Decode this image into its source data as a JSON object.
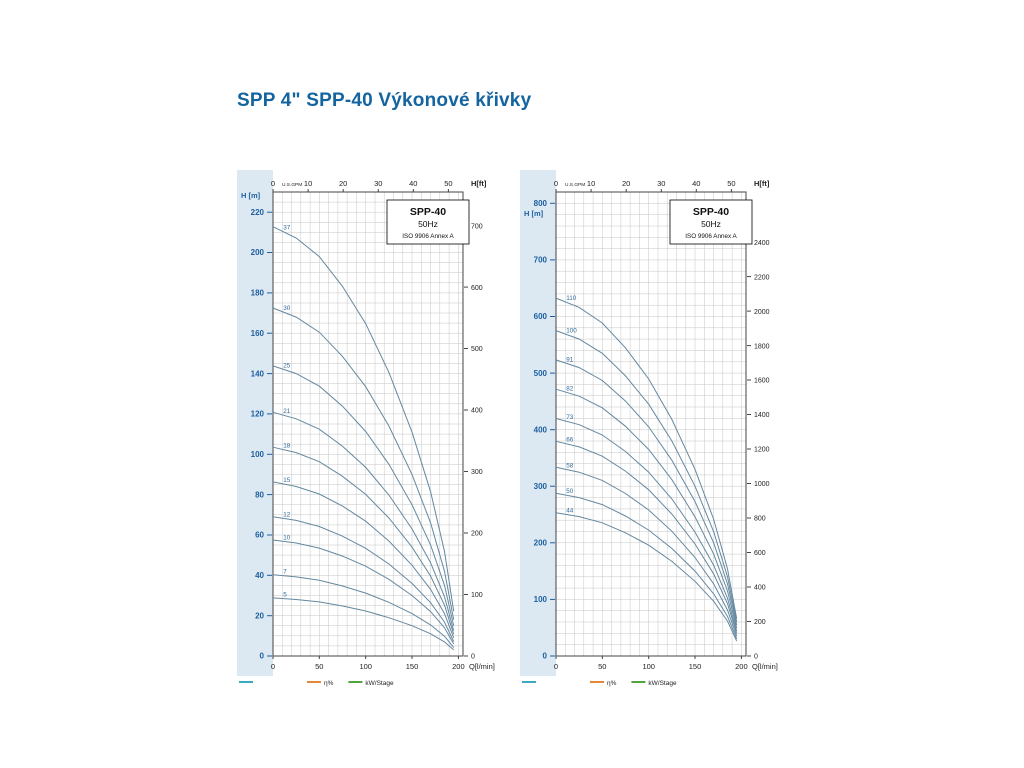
{
  "page": {
    "title": "SPP 4\" SPP-40 Výkonové křivky"
  },
  "colors": {
    "title": "#1464a0",
    "band": "#dde9f2",
    "grid": "#c6c6c6",
    "frame": "#444444",
    "curve": "#6488a0",
    "curve_label": "#2f6b9e",
    "axis_blue": "#1d5fa0",
    "axis_dark": "#222222",
    "legend_teal": "#25a0b4",
    "legend_orange": "#e07b20",
    "legend_green": "#3f9a28"
  },
  "chart_data": [
    {
      "type": "line",
      "box_title": "SPP-40",
      "box_subtitle": "50Hz",
      "box_note": "ISO 9906 Annex A",
      "x_axis_top_label": "U.S.GPM",
      "x_axis_bottom_label": "Q[l/min]",
      "y_axis_left_label": "H [m]",
      "y_axis_right_label": "H[ft]",
      "xlim": [
        0,
        205
      ],
      "ylim": [
        0,
        230
      ],
      "grid_x": 10,
      "grid_y": 5,
      "h_m_label_dy": 6,
      "x_bottom_ticks": [
        0,
        50,
        100,
        150,
        200
      ],
      "x_top_ticks_gpm": [
        0,
        10,
        20,
        30,
        40,
        50
      ],
      "y_left_ticks": [
        0,
        20,
        40,
        60,
        80,
        100,
        120,
        140,
        160,
        180,
        200,
        220
      ],
      "y_right_ticks_ft": [
        0,
        100,
        200,
        300,
        400,
        500,
        600,
        700
      ],
      "x": [
        0,
        25,
        50,
        75,
        100,
        125,
        150,
        170,
        185,
        195
      ],
      "series": [
        {
          "name": "37",
          "values": [
            212.8,
            207.2,
            198.0,
            183.2,
            164.7,
            140.6,
            111.0,
            81.4,
            51.8,
            22.2
          ]
        },
        {
          "name": "30",
          "values": [
            172.5,
            168.0,
            160.5,
            148.5,
            133.5,
            114.0,
            90.0,
            66.0,
            42.0,
            18.0
          ]
        },
        {
          "name": "25",
          "values": [
            143.8,
            140.0,
            133.8,
            123.8,
            111.3,
            95.0,
            75.0,
            55.0,
            35.0,
            15.0
          ]
        },
        {
          "name": "21",
          "values": [
            120.8,
            117.6,
            112.4,
            104.0,
            93.5,
            79.8,
            63.0,
            46.2,
            29.4,
            12.6
          ]
        },
        {
          "name": "18",
          "values": [
            103.5,
            100.8,
            96.3,
            89.1,
            80.1,
            68.4,
            54.0,
            39.6,
            25.2,
            10.8
          ]
        },
        {
          "name": "15",
          "values": [
            86.3,
            84.0,
            80.3,
            74.3,
            66.8,
            57.0,
            45.0,
            33.0,
            21.0,
            9.0
          ]
        },
        {
          "name": "12",
          "values": [
            69.0,
            67.2,
            64.2,
            59.4,
            53.4,
            45.6,
            36.0,
            26.4,
            16.8,
            7.2
          ]
        },
        {
          "name": "10",
          "values": [
            57.5,
            56.0,
            53.5,
            49.5,
            44.5,
            38.0,
            30.0,
            22.0,
            14.0,
            6.0
          ]
        },
        {
          "name": "7",
          "values": [
            40.3,
            39.2,
            37.5,
            34.7,
            31.2,
            26.6,
            21.0,
            15.4,
            9.8,
            4.2
          ]
        },
        {
          "name": "5",
          "values": [
            28.8,
            28.0,
            26.8,
            24.8,
            22.3,
            19.0,
            15.0,
            11.0,
            7.0,
            3.0
          ]
        }
      ],
      "legend": [
        {
          "label": "",
          "color": "#25a0b4"
        },
        {
          "label": "η%",
          "color": "#e07b20"
        },
        {
          "label": "kW/Stage",
          "color": "#3f9a28"
        }
      ]
    },
    {
      "type": "line",
      "box_title": "SPP-40",
      "box_subtitle": "50Hz",
      "box_note": "ISO 9906 Annex A",
      "x_axis_top_label": "U.S.GPM",
      "x_axis_bottom_label": "Q[l/min]",
      "y_axis_left_label": "H [m]",
      "y_axis_right_label": "H[ft]",
      "xlim": [
        0,
        205
      ],
      "ylim": [
        0,
        820
      ],
      "grid_x": 10,
      "grid_y": 20,
      "h_m_label_dy": 24,
      "x_bottom_ticks": [
        0,
        50,
        100,
        150,
        200
      ],
      "x_top_ticks_gpm": [
        0,
        10,
        20,
        30,
        40,
        50
      ],
      "y_left_ticks": [
        0,
        100,
        200,
        300,
        400,
        500,
        600,
        700,
        800
      ],
      "y_right_ticks_ft": [
        0,
        200,
        400,
        600,
        800,
        1000,
        1200,
        1400,
        1600,
        1800,
        2000,
        2200,
        2400
      ],
      "x": [
        0,
        25,
        50,
        75,
        100,
        125,
        150,
        170,
        185,
        195
      ],
      "series": [
        {
          "name": "110",
          "values": [
            632.5,
            616.0,
            588.5,
            544.5,
            489.5,
            418.0,
            330.0,
            242.0,
            154.0,
            66.0
          ]
        },
        {
          "name": "100",
          "values": [
            575.0,
            560.0,
            535.0,
            495.0,
            445.0,
            380.0,
            300.0,
            220.0,
            140.0,
            60.0
          ]
        },
        {
          "name": "91",
          "values": [
            523.3,
            509.6,
            486.9,
            450.5,
            404.9,
            345.8,
            273.0,
            200.2,
            127.4,
            54.6
          ]
        },
        {
          "name": "82",
          "values": [
            471.5,
            459.2,
            438.7,
            405.9,
            364.9,
            311.6,
            246.0,
            180.4,
            114.8,
            49.2
          ]
        },
        {
          "name": "73",
          "values": [
            419.8,
            408.8,
            390.6,
            361.4,
            324.9,
            277.4,
            219.0,
            160.6,
            102.2,
            43.8
          ]
        },
        {
          "name": "66",
          "values": [
            379.5,
            369.6,
            353.1,
            326.7,
            293.7,
            250.8,
            198.0,
            145.2,
            92.4,
            39.6
          ]
        },
        {
          "name": "58",
          "values": [
            333.5,
            324.8,
            310.3,
            287.1,
            258.1,
            220.4,
            174.0,
            127.6,
            81.2,
            34.8
          ]
        },
        {
          "name": "50",
          "values": [
            287.5,
            280.0,
            267.5,
            247.5,
            222.5,
            190.0,
            150.0,
            110.0,
            70.0,
            30.0
          ]
        },
        {
          "name": "44",
          "values": [
            253.0,
            246.4,
            235.4,
            217.8,
            195.8,
            167.2,
            132.0,
            96.8,
            61.6,
            26.4
          ]
        }
      ],
      "legend": [
        {
          "label": "",
          "color": "#25a0b4"
        },
        {
          "label": "η%",
          "color": "#e07b20"
        },
        {
          "label": "kW/Stage",
          "color": "#3f9a28"
        }
      ]
    }
  ]
}
